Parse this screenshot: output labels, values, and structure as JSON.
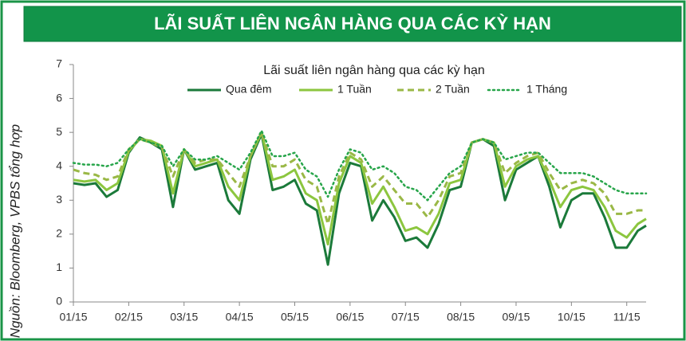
{
  "header": {
    "title": "LÃI SUẤT LIÊN NGÂN HÀNG QUA CÁC KỲ HẠN"
  },
  "source": "Nguồn: Bloomberg, VPBS tổng hợp",
  "chart_data": {
    "type": "line",
    "title": "Lãi suất liên ngân hàng qua các kỳ hạn",
    "x": [
      0,
      0.2,
      0.4,
      0.6,
      0.8,
      1.0,
      1.2,
      1.4,
      1.6,
      1.8,
      2.0,
      2.2,
      2.4,
      2.6,
      2.8,
      3.0,
      3.2,
      3.4,
      3.6,
      3.8,
      4.0,
      4.2,
      4.4,
      4.6,
      4.8,
      5.0,
      5.2,
      5.4,
      5.6,
      5.8,
      6.0,
      6.2,
      6.4,
      6.6,
      6.8,
      7.0,
      7.2,
      7.4,
      7.6,
      7.8,
      8.0,
      8.2,
      8.4,
      8.6,
      8.8,
      9.0,
      9.2,
      9.4,
      9.6,
      9.8,
      10.0,
      10.2,
      10.35
    ],
    "series": [
      {
        "name": "Qua đêm",
        "color": "#1b7a3a",
        "style": "solid",
        "width": 3,
        "values": [
          3.5,
          3.45,
          3.5,
          3.1,
          3.3,
          4.4,
          4.85,
          4.7,
          4.5,
          2.8,
          4.5,
          3.9,
          4.0,
          4.1,
          3.0,
          2.6,
          4.2,
          4.95,
          3.3,
          3.4,
          3.6,
          2.9,
          2.7,
          1.1,
          3.2,
          4.1,
          4.0,
          2.4,
          3.0,
          2.5,
          1.8,
          1.9,
          1.6,
          2.3,
          3.3,
          3.4,
          4.7,
          4.8,
          4.6,
          3.0,
          3.9,
          4.1,
          4.3,
          3.4,
          2.2,
          3.0,
          3.2,
          3.2,
          2.5,
          1.6,
          1.6,
          2.1,
          2.25
        ]
      },
      {
        "name": "1 Tuần",
        "color": "#8cc63f",
        "style": "solid",
        "width": 3,
        "values": [
          3.6,
          3.55,
          3.6,
          3.3,
          3.5,
          4.45,
          4.8,
          4.75,
          4.6,
          3.2,
          4.5,
          4.0,
          4.1,
          4.2,
          3.4,
          3.0,
          4.3,
          5.0,
          3.6,
          3.7,
          3.9,
          3.2,
          3.0,
          1.7,
          3.5,
          4.3,
          4.1,
          2.9,
          3.4,
          2.8,
          2.1,
          2.2,
          2.0,
          2.6,
          3.5,
          3.6,
          4.7,
          4.8,
          4.7,
          3.4,
          4.0,
          4.2,
          4.3,
          3.6,
          2.8,
          3.3,
          3.4,
          3.3,
          2.8,
          2.1,
          1.9,
          2.3,
          2.45
        ]
      },
      {
        "name": "2 Tuần",
        "color": "#9ab846",
        "style": "dashed",
        "width": 3,
        "values": [
          3.9,
          3.8,
          3.75,
          3.6,
          3.7,
          4.5,
          4.8,
          4.7,
          4.55,
          3.7,
          4.5,
          4.1,
          4.2,
          4.2,
          3.8,
          3.4,
          4.3,
          5.0,
          4.0,
          4.0,
          4.2,
          3.6,
          3.4,
          2.3,
          3.7,
          4.4,
          4.2,
          3.4,
          3.7,
          3.3,
          2.9,
          2.9,
          2.5,
          3.0,
          3.7,
          3.8,
          4.7,
          4.8,
          4.7,
          3.8,
          4.1,
          4.3,
          4.4,
          3.8,
          3.3,
          3.5,
          3.6,
          3.5,
          3.2,
          2.6,
          2.6,
          2.7,
          2.7
        ]
      },
      {
        "name": "1 Tháng",
        "color": "#27a54a",
        "style": "dotted",
        "width": 2.5,
        "values": [
          4.1,
          4.05,
          4.05,
          4.0,
          4.1,
          4.5,
          4.8,
          4.7,
          4.6,
          4.0,
          4.5,
          4.2,
          4.2,
          4.3,
          4.1,
          3.9,
          4.4,
          5.05,
          4.3,
          4.3,
          4.4,
          3.9,
          3.7,
          3.1,
          3.9,
          4.5,
          4.4,
          3.9,
          4.0,
          3.8,
          3.4,
          3.3,
          3.0,
          3.4,
          3.8,
          4.0,
          4.7,
          4.8,
          4.7,
          4.2,
          4.3,
          4.4,
          4.4,
          4.1,
          3.8,
          3.8,
          3.8,
          3.7,
          3.5,
          3.3,
          3.2,
          3.2,
          3.2
        ]
      }
    ],
    "xlim": [
      0,
      10.35
    ],
    "xticks": [
      {
        "value": 0,
        "label": "01/15"
      },
      {
        "value": 1,
        "label": "02/15"
      },
      {
        "value": 2,
        "label": "03/15"
      },
      {
        "value": 3,
        "label": "04/15"
      },
      {
        "value": 4,
        "label": "05/15"
      },
      {
        "value": 5,
        "label": "06/15"
      },
      {
        "value": 6,
        "label": "07/15"
      },
      {
        "value": 7,
        "label": "08/15"
      },
      {
        "value": 8,
        "label": "09/15"
      },
      {
        "value": 9,
        "label": "10/15"
      },
      {
        "value": 10,
        "label": "11/15"
      }
    ],
    "ylim": [
      0,
      7
    ],
    "yticks": [
      0,
      1,
      2,
      3,
      4,
      5,
      6,
      7
    ],
    "grid": false,
    "legend": "top"
  }
}
